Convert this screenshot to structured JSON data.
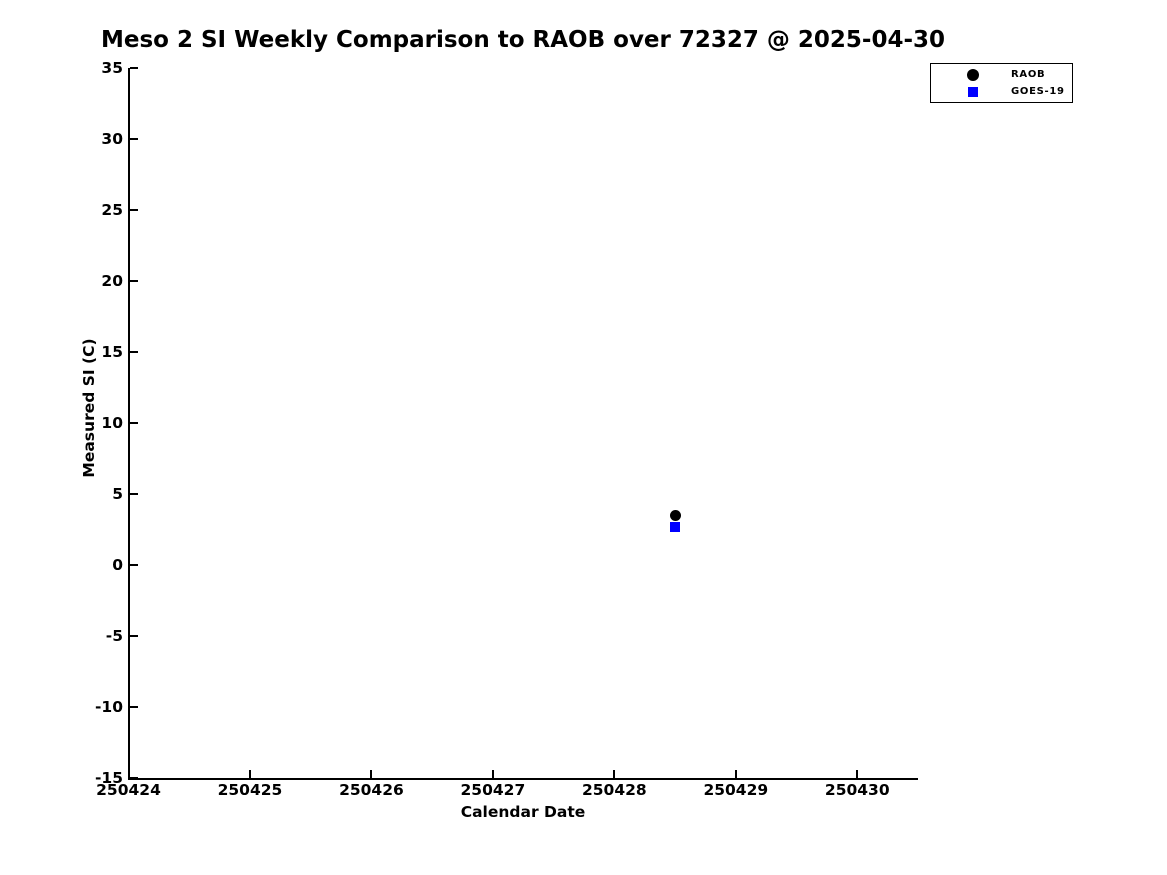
{
  "chart_data": {
    "type": "scatter",
    "title": "Meso 2 SI Weekly Comparison to RAOB over 72327 @ 2025-04-30",
    "xlabel": "Calendar Date",
    "ylabel": "Measured SI (C)",
    "xlim": [
      250424,
      250430.5
    ],
    "ylim": [
      -15,
      35
    ],
    "xticks": [
      250424,
      250425,
      250426,
      250427,
      250428,
      250429,
      250430
    ],
    "yticks": [
      -15,
      -10,
      -5,
      0,
      5,
      10,
      15,
      20,
      25,
      30,
      35
    ],
    "grid": false,
    "background_color": "#ffffff",
    "axis_color": "#000000",
    "legend": {
      "position": "top-right",
      "entries": [
        "RAOB",
        "GOES-19"
      ]
    },
    "series": [
      {
        "name": "RAOB",
        "marker": "circle",
        "color": "#000000",
        "points": [
          {
            "x": 250428.5,
            "y": 3.5
          }
        ]
      },
      {
        "name": "GOES-19",
        "marker": "square",
        "color": "#0000ff",
        "points": [
          {
            "x": 250428.5,
            "y": 2.7
          }
        ]
      }
    ]
  }
}
